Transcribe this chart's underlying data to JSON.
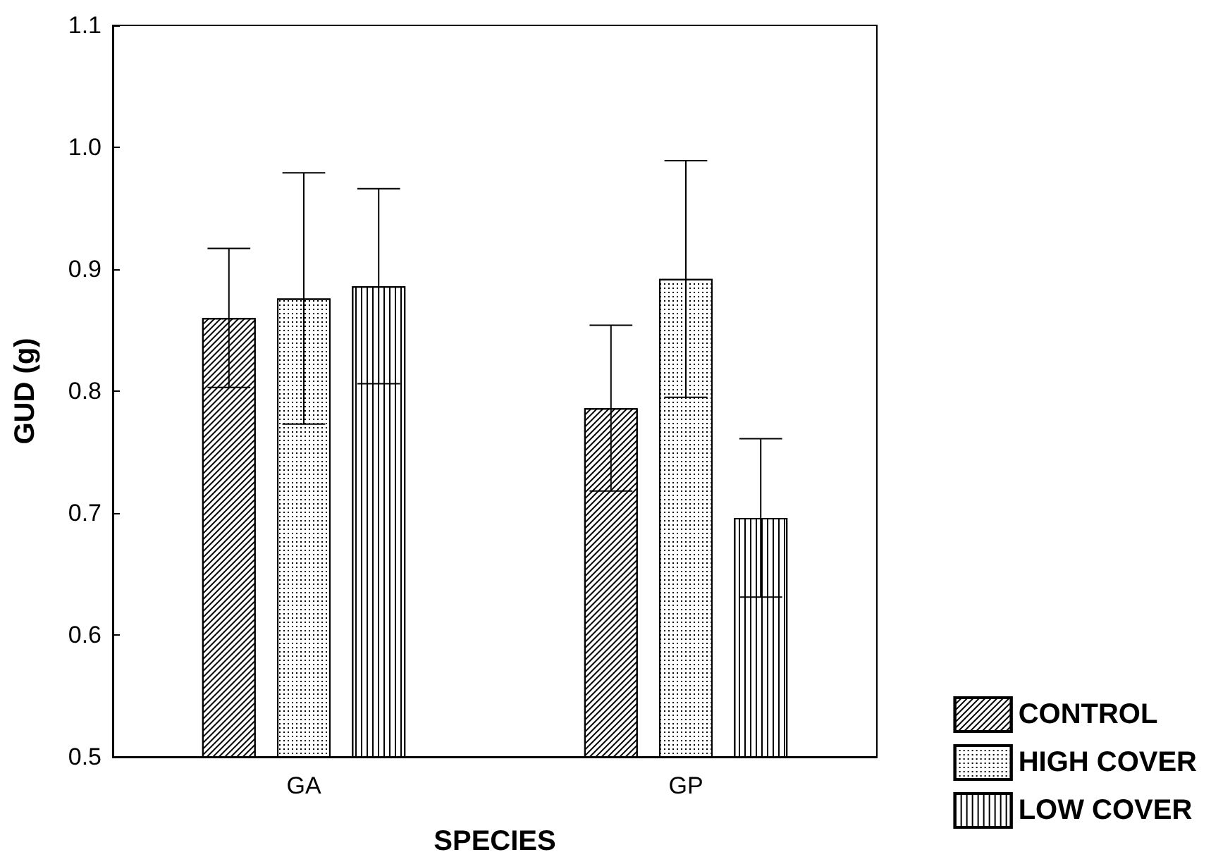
{
  "chart_data": {
    "type": "bar",
    "xlabel": "SPECIES",
    "ylabel": "GUD (g)",
    "categories": [
      "GA",
      "GP"
    ],
    "series": [
      {
        "name": "CONTROL",
        "color": "#ffffff",
        "values": [
          0.86,
          0.786
        ],
        "errors": [
          0.057,
          0.068
        ]
      },
      {
        "name": "HIGH COVER",
        "color": "#ffffff",
        "values": [
          0.876,
          0.892
        ],
        "errors": [
          0.103,
          0.097
        ]
      },
      {
        "name": "LOW COVER",
        "color": "#ffffff",
        "values": [
          0.886,
          0.696
        ],
        "errors": [
          0.08,
          0.065
        ]
      }
    ],
    "ylim": [
      0.5,
      1.1
    ],
    "yticks": [
      {
        "value": 0.5,
        "label": "0.5"
      },
      {
        "value": 0.6,
        "label": "0.6"
      },
      {
        "value": 0.7,
        "label": "0.7"
      },
      {
        "value": 0.8,
        "label": "0.8"
      },
      {
        "value": 0.9,
        "label": "0.9"
      },
      {
        "value": 1.0,
        "label": "1.0"
      },
      {
        "value": 1.1,
        "label": "1.1"
      }
    ],
    "legend": "bottom right",
    "grid": false
  }
}
